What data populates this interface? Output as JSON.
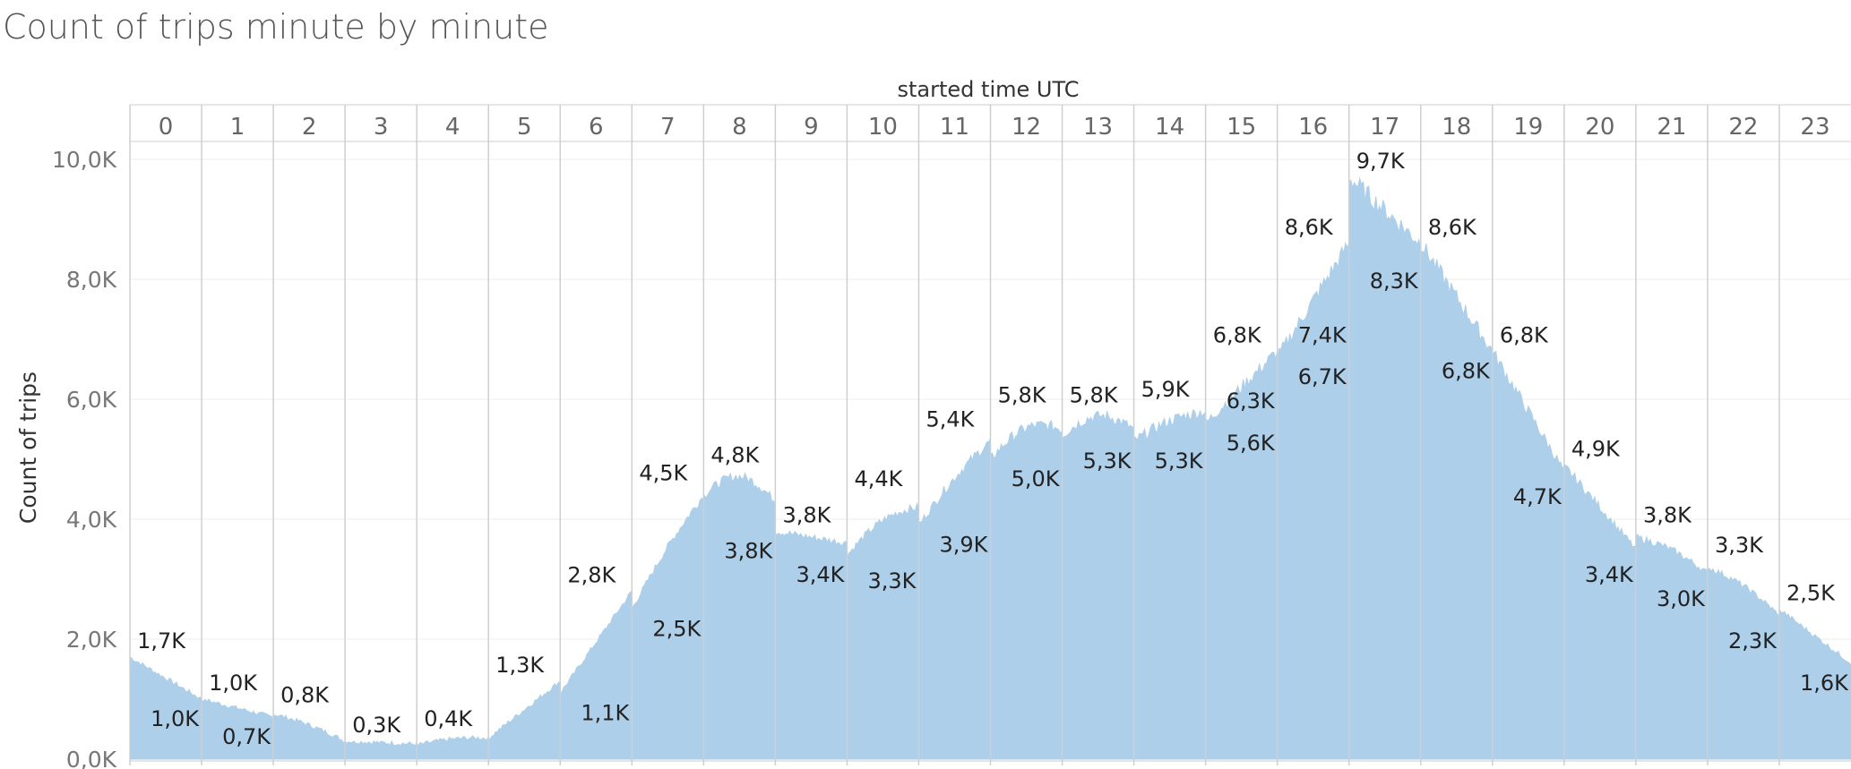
{
  "title": "Count of trips minute by minute",
  "chart_data": {
    "type": "area",
    "title": "Count of trips minute by minute",
    "column_header": "started time UTC",
    "columns": [
      "0",
      "1",
      "2",
      "3",
      "4",
      "5",
      "6",
      "7",
      "8",
      "9",
      "10",
      "11",
      "12",
      "13",
      "14",
      "15",
      "16",
      "17",
      "18",
      "19",
      "20",
      "21",
      "22",
      "23"
    ],
    "ylabel": "Count of trips",
    "ylim": [
      0,
      10300
    ],
    "yticks": [
      0,
      2000,
      4000,
      6000,
      8000,
      10000
    ],
    "ytick_labels": [
      "0,0K",
      "2,0K",
      "4,0K",
      "6,0K",
      "8,0K",
      "10,0K"
    ],
    "grid": "horizontal",
    "color": "#aecfe9",
    "hour_profiles": [
      {
        "hour": "0",
        "start": 1700,
        "end": 1000,
        "max": 1700,
        "min": 1000,
        "max_label": "1,7K",
        "min_label": "1,0K"
      },
      {
        "hour": "1",
        "start": 1000,
        "end": 700,
        "max": 1000,
        "min": 700,
        "max_label": "1,0K",
        "min_label": "0,7K"
      },
      {
        "hour": "2",
        "start": 750,
        "end": 300,
        "max": 800,
        "min": 300,
        "max_label": "0,8K",
        "min_label": ""
      },
      {
        "hour": "3",
        "start": 300,
        "end": 250,
        "max": 300,
        "min": 220,
        "max_label": "0,3K",
        "min_label": ""
      },
      {
        "hour": "4",
        "start": 230,
        "end": 350,
        "max": 400,
        "min": 200,
        "max_label": "0,4K",
        "min_label": ""
      },
      {
        "hour": "5",
        "start": 350,
        "end": 1300,
        "max": 1300,
        "min": 300,
        "max_label": "1,3K",
        "min_label": ""
      },
      {
        "hour": "6",
        "start": 1100,
        "end": 2800,
        "max": 2800,
        "min": 1100,
        "max_label": "2,8K",
        "min_label": "1,1K"
      },
      {
        "hour": "7",
        "start": 2500,
        "end": 4400,
        "max": 4500,
        "min": 2500,
        "max_label": "4,5K",
        "min_label": "2,5K"
      },
      {
        "hour": "8",
        "start": 4400,
        "end": 4300,
        "max": 4800,
        "min": 3800,
        "max_label": "4,8K",
        "min_label": "3,8K"
      },
      {
        "hour": "9",
        "start": 3800,
        "end": 3600,
        "max": 3800,
        "min": 3400,
        "max_label": "3,8K",
        "min_label": "3,4K"
      },
      {
        "hour": "10",
        "start": 3400,
        "end": 4200,
        "max": 4400,
        "min": 3300,
        "max_label": "4,4K",
        "min_label": "3,3K"
      },
      {
        "hour": "11",
        "start": 3900,
        "end": 5300,
        "max": 5400,
        "min": 3900,
        "max_label": "5,4K",
        "min_label": "3,9K"
      },
      {
        "hour": "12",
        "start": 5000,
        "end": 5500,
        "max": 5800,
        "min": 5000,
        "max_label": "5,8K",
        "min_label": "5,0K"
      },
      {
        "hour": "13",
        "start": 5400,
        "end": 5500,
        "max": 5800,
        "min": 5300,
        "max_label": "5,8K",
        "min_label": "5,3K"
      },
      {
        "hour": "14",
        "start": 5300,
        "end": 5800,
        "max": 5900,
        "min": 5300,
        "max_label": "5,9K",
        "min_label": "5,3K"
      },
      {
        "hour": "15",
        "start": 5600,
        "end": 6800,
        "max": 6800,
        "min": 5600,
        "max_label": "6,8K",
        "min_label": "5,6K"
      },
      {
        "hour": "15",
        "start": 6300,
        "end": 6300,
        "max": 6300,
        "min": 6300,
        "max_label": "",
        "min_label": "6,3K"
      },
      {
        "hour": "16",
        "start": 6700,
        "end": 8600,
        "max": 8600,
        "min": 6700,
        "max_label": "8,6K",
        "min_label": "6,7K"
      },
      {
        "hour": "16",
        "start": 7400,
        "end": 7400,
        "max": 7400,
        "min": 7400,
        "max_label": "",
        "min_label": "7,4K"
      },
      {
        "hour": "17",
        "start": 9700,
        "end": 8600,
        "max": 9700,
        "min": 8300,
        "max_label": "9,7K",
        "min_label": "8,3K"
      },
      {
        "hour": "18",
        "start": 8600,
        "end": 6800,
        "max": 8600,
        "min": 6800,
        "max_label": "8,6K",
        "min_label": "6,8K"
      },
      {
        "hour": "19",
        "start": 6800,
        "end": 4800,
        "max": 6800,
        "min": 4700,
        "max_label": "6,8K",
        "min_label": "4,7K"
      },
      {
        "hour": "20",
        "start": 4900,
        "end": 3500,
        "max": 4900,
        "min": 3400,
        "max_label": "4,9K",
        "min_label": "3,4K"
      },
      {
        "hour": "21",
        "start": 3700,
        "end": 3100,
        "max": 3800,
        "min": 3000,
        "max_label": "3,8K",
        "min_label": "3,0K"
      },
      {
        "hour": "22",
        "start": 3200,
        "end": 2400,
        "max": 3300,
        "min": 2300,
        "max_label": "3,3K",
        "min_label": "2,3K"
      },
      {
        "hour": "23",
        "start": 2500,
        "end": 1600,
        "max": 2500,
        "min": 1600,
        "max_label": "2,5K",
        "min_label": "1,6K"
      }
    ]
  }
}
